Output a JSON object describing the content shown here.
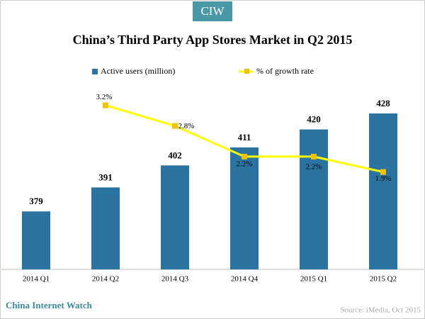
{
  "header": {
    "badge": "CIW"
  },
  "chart_data": {
    "type": "bar_line",
    "title": "China’s Third Party App Stores Market in Q2 2015",
    "categories": [
      "2014 Q1",
      "2014 Q2",
      "2014 Q3",
      "2014 Q4",
      "2015 Q1",
      "2015 Q2"
    ],
    "series": [
      {
        "name": "Active users (million)",
        "color": "#2b74a1",
        "type": "bar",
        "values": [
          379,
          391,
          402,
          411,
          420,
          428
        ]
      },
      {
        "name": "% of growth rate",
        "color": "#ffff00",
        "marker_color": "#f2c200",
        "type": "line",
        "axis": "y2",
        "values": [
          null,
          3.2,
          2.8,
          2.2,
          2.2,
          1.9
        ],
        "value_labels": [
          null,
          "3.2%",
          "2.8%",
          "2.2%",
          "2.2%",
          "1.9%"
        ]
      }
    ],
    "ylim": [
      350,
      450
    ],
    "y2lim": [
      0,
      3.9
    ],
    "legend": "top"
  },
  "footer": {
    "brand": "China Internet Watch",
    "source": "Source: iMedia,  Oct 2015"
  }
}
